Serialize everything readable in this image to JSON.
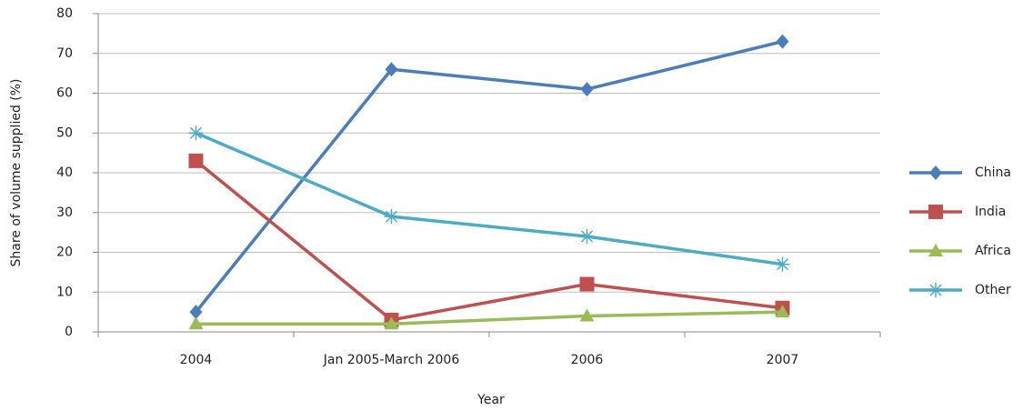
{
  "chart_data": {
    "type": "line",
    "x_label": "Year",
    "y_label": "Share of volume supplied (%)",
    "categories": [
      "2004",
      "Jan 2005-March 2006",
      "2006",
      "2007"
    ],
    "series": [
      {
        "name": "China",
        "color": "#4a7ebb",
        "marker": "diamond",
        "values": [
          5,
          66,
          61,
          73
        ]
      },
      {
        "name": "India",
        "color": "#c0504d",
        "marker": "square",
        "values": [
          43,
          3,
          12,
          6
        ]
      },
      {
        "name": "Africa",
        "color": "#9bbb59",
        "marker": "triangle",
        "values": [
          2,
          2,
          4,
          5
        ]
      },
      {
        "name": "Other",
        "color": "#4bacc6",
        "marker": "asterisk",
        "values": [
          50,
          29,
          24,
          17
        ]
      }
    ],
    "ylim": [
      0,
      80
    ],
    "yticks": [
      0,
      10,
      20,
      30,
      40,
      50,
      60,
      70,
      80
    ],
    "grid": true,
    "legend": "right"
  }
}
